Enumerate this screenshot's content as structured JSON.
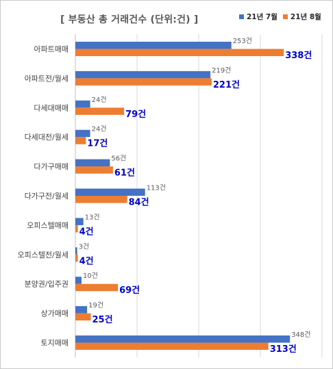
{
  "chart_data": {
    "type": "bar",
    "title": "[ 부동산 총 거래건수 (단위:건) ]",
    "categories": [
      "아파트매매",
      "아파트전/월세",
      "다세대매매",
      "다세대전/월세",
      "다가구매매",
      "다가구전/월세",
      "오피스텔매매",
      "오피스텔전/월세",
      "분양권/입주권",
      "상가매매",
      "토지매매"
    ],
    "series": [
      {
        "name": "21년 7월",
        "color": "#4472c4",
        "values": [
          253,
          219,
          24,
          24,
          56,
          113,
          13,
          3,
          10,
          19,
          348
        ],
        "labels": [
          "253건",
          "219건",
          "24건",
          "24건",
          "56건",
          "113건",
          "13건",
          "3건",
          "10건",
          "19건",
          "348건"
        ]
      },
      {
        "name": "21년 8월",
        "color": "#ed7d31",
        "values": [
          338,
          221,
          79,
          17,
          61,
          84,
          4,
          4,
          69,
          25,
          313
        ],
        "labels": [
          "338건",
          "221건",
          "79건",
          "17건",
          "61건",
          "84건",
          "4건",
          "4건",
          "69건",
          "25건",
          "313건"
        ]
      }
    ],
    "xlim": [
      0,
      400
    ],
    "grid": true,
    "legend": "top-right",
    "orientation": "horizontal"
  }
}
